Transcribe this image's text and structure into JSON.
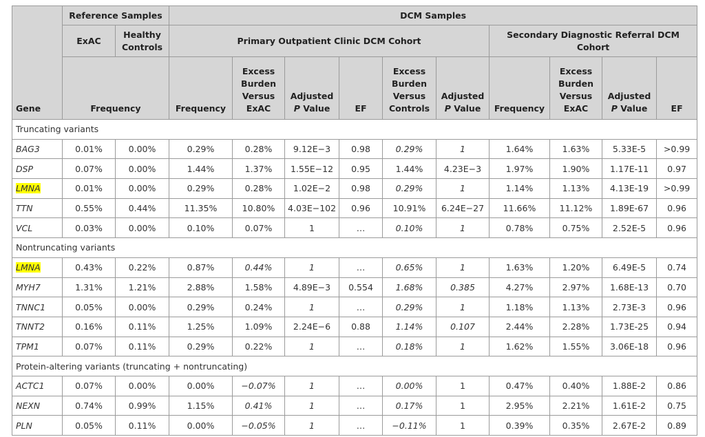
{
  "table": {
    "header": {
      "gene": "Gene",
      "reference": "Reference Samples",
      "dcm": "DCM Samples",
      "exac": "ExAC",
      "healthy": "Healthy Controls",
      "primary": "Primary Outpatient Clinic DCM Cohort",
      "secondary": "Secondary Diagnostic Referral DCM Cohort",
      "columns": [
        "Frequency",
        "Frequency",
        "Excess Burden Versus ExAC",
        "Adjusted P Value",
        "EF",
        "Excess Burden Versus Controls",
        "Adjusted P Value",
        "Frequency",
        "Excess Burden Versus ExAC",
        "Adjusted P Value",
        "EF"
      ]
    },
    "sections": [
      {
        "title": "Truncating variants",
        "rows": [
          {
            "gene": "BAG3",
            "cells": [
              "0.01%",
              "0.00%",
              "0.29%",
              "0.28%",
              "9.12E−3",
              "0.98",
              "0.29%",
              "1",
              "1.64%",
              "1.63%",
              "5.33E-5",
              ">0.99"
            ],
            "italic": [
              6,
              7
            ]
          },
          {
            "gene": "DSP",
            "cells": [
              "0.07%",
              "0.00%",
              "1.44%",
              "1.37%",
              "1.55E−12",
              "0.95",
              "1.44%",
              "4.23E−3",
              "1.97%",
              "1.90%",
              "1.17E-11",
              "0.97"
            ],
            "italic": []
          },
          {
            "gene": "LMNA",
            "cells": [
              "0.01%",
              "0.00%",
              "0.29%",
              "0.28%",
              "1.02E−2",
              "0.98",
              "0.29%",
              "1",
              "1.14%",
              "1.13%",
              "4.13E-19",
              ">0.99"
            ],
            "italic": [
              6,
              7
            ],
            "highlight": true
          },
          {
            "gene": "TTN",
            "cells": [
              "0.55%",
              "0.44%",
              "11.35%",
              "10.80%",
              "4.03E−102",
              "0.96",
              "10.91%",
              "6.24E−27",
              "11.66%",
              "11.12%",
              "1.89E-67",
              "0.96"
            ],
            "italic": []
          },
          {
            "gene": "VCL",
            "cells": [
              "0.03%",
              "0.00%",
              "0.10%",
              "0.07%",
              "1",
              "…",
              "0.10%",
              "1",
              "0.78%",
              "0.75%",
              "2.52E-5",
              "0.96"
            ],
            "italic": [
              6,
              7
            ]
          }
        ]
      },
      {
        "title": "Nontruncating variants",
        "rows": [
          {
            "gene": "LMNA",
            "cells": [
              "0.43%",
              "0.22%",
              "0.87%",
              "0.44%",
              "1",
              "…",
              "0.65%",
              "1",
              "1.63%",
              "1.20%",
              "6.49E-5",
              "0.74"
            ],
            "italic": [
              3,
              4,
              6,
              7
            ],
            "highlight": true
          },
          {
            "gene": "MYH7",
            "cells": [
              "1.31%",
              "1.21%",
              "2.88%",
              "1.58%",
              "4.89E−3",
              "0.554",
              "1.68%",
              "0.385",
              "4.27%",
              "2.97%",
              "1.68E-13",
              "0.70"
            ],
            "italic": [
              6,
              7
            ]
          },
          {
            "gene": "TNNC1",
            "cells": [
              "0.05%",
              "0.00%",
              "0.29%",
              "0.24%",
              "1",
              "…",
              "0.29%",
              "1",
              "1.18%",
              "1.13%",
              "2.73E-3",
              "0.96"
            ],
            "italic": [
              4,
              6,
              7
            ]
          },
          {
            "gene": "TNNT2",
            "cells": [
              "0.16%",
              "0.11%",
              "1.25%",
              "1.09%",
              "2.24E−6",
              "0.88",
              "1.14%",
              "0.107",
              "2.44%",
              "2.28%",
              "1.73E-25",
              "0.94"
            ],
            "italic": [
              6,
              7
            ]
          },
          {
            "gene": "TPM1",
            "cells": [
              "0.07%",
              "0.11%",
              "0.29%",
              "0.22%",
              "1",
              "…",
              "0.18%",
              "1",
              "1.62%",
              "1.55%",
              "3.06E-18",
              "0.96"
            ],
            "italic": [
              4,
              6,
              7
            ]
          }
        ]
      },
      {
        "title": "Protein-altering variants (truncating + nontruncating)",
        "rows": [
          {
            "gene": "ACTC1",
            "cells": [
              "0.07%",
              "0.00%",
              "0.00%",
              "−0.07%",
              "1",
              "…",
              "0.00%",
              "1",
              "0.47%",
              "0.40%",
              "1.88E-2",
              "0.86"
            ],
            "italic": [
              3,
              4,
              6
            ]
          },
          {
            "gene": "NEXN",
            "cells": [
              "0.74%",
              "0.99%",
              "1.15%",
              "0.41%",
              "1",
              "…",
              "0.17%",
              "1",
              "2.95%",
              "2.21%",
              "1.61E-2",
              "0.75"
            ],
            "italic": [
              3,
              4,
              6
            ]
          },
          {
            "gene": "PLN",
            "cells": [
              "0.05%",
              "0.11%",
              "0.00%",
              "−0.05%",
              "1",
              "…",
              "−0.11%",
              "1",
              "0.39%",
              "0.35%",
              "2.67E-2",
              "0.89"
            ],
            "italic": [
              3,
              4,
              6
            ]
          }
        ]
      }
    ]
  }
}
